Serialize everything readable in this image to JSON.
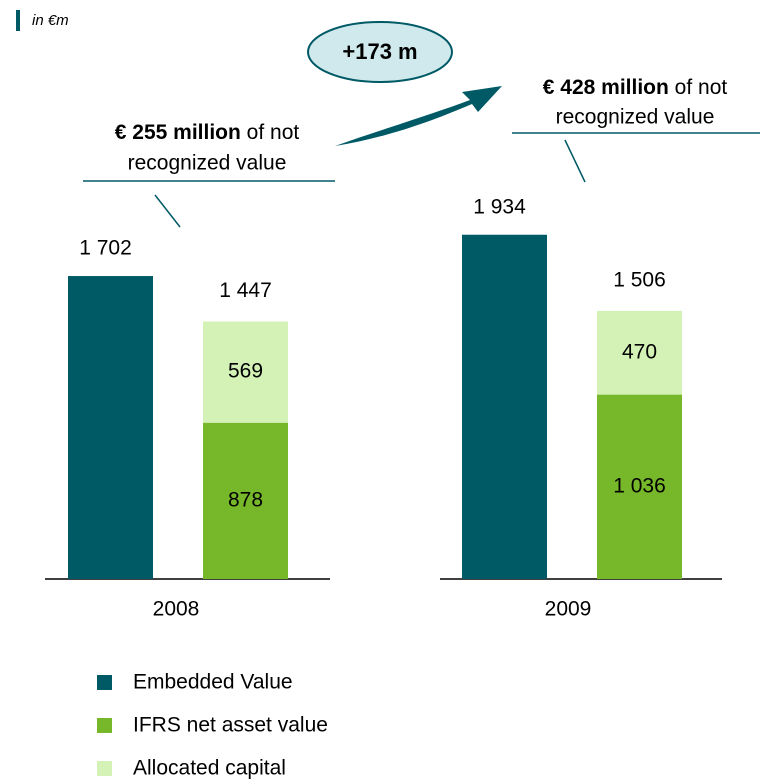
{
  "chart_data": {
    "type": "bar",
    "unit_note": "in €m",
    "change_note": "+173 m",
    "annotations": [
      {
        "bold": "€ 255 million",
        "text": " of not",
        "line2": "recognized value"
      },
      {
        "bold": "€ 428 million",
        "text": " of not",
        "line2": "recognized value"
      }
    ],
    "categories": [
      "2008",
      "2009"
    ],
    "series": [
      {
        "name": "Embedded Value",
        "color": "#005a66",
        "values": [
          1702,
          1934
        ],
        "value_labels": [
          "1 702",
          "1 934"
        ]
      },
      {
        "name": "IFRS net asset value",
        "color": "#76b82a",
        "values": [
          878,
          1036
        ],
        "value_labels": [
          "878",
          "1 036"
        ]
      },
      {
        "name": "Allocated capital",
        "color": "#d4f2b5",
        "values": [
          569,
          470
        ],
        "value_labels": [
          "569",
          "470"
        ]
      }
    ],
    "totals": {
      "values": [
        1447,
        1506
      ],
      "value_labels": [
        "1 447",
        "1 506"
      ]
    }
  }
}
